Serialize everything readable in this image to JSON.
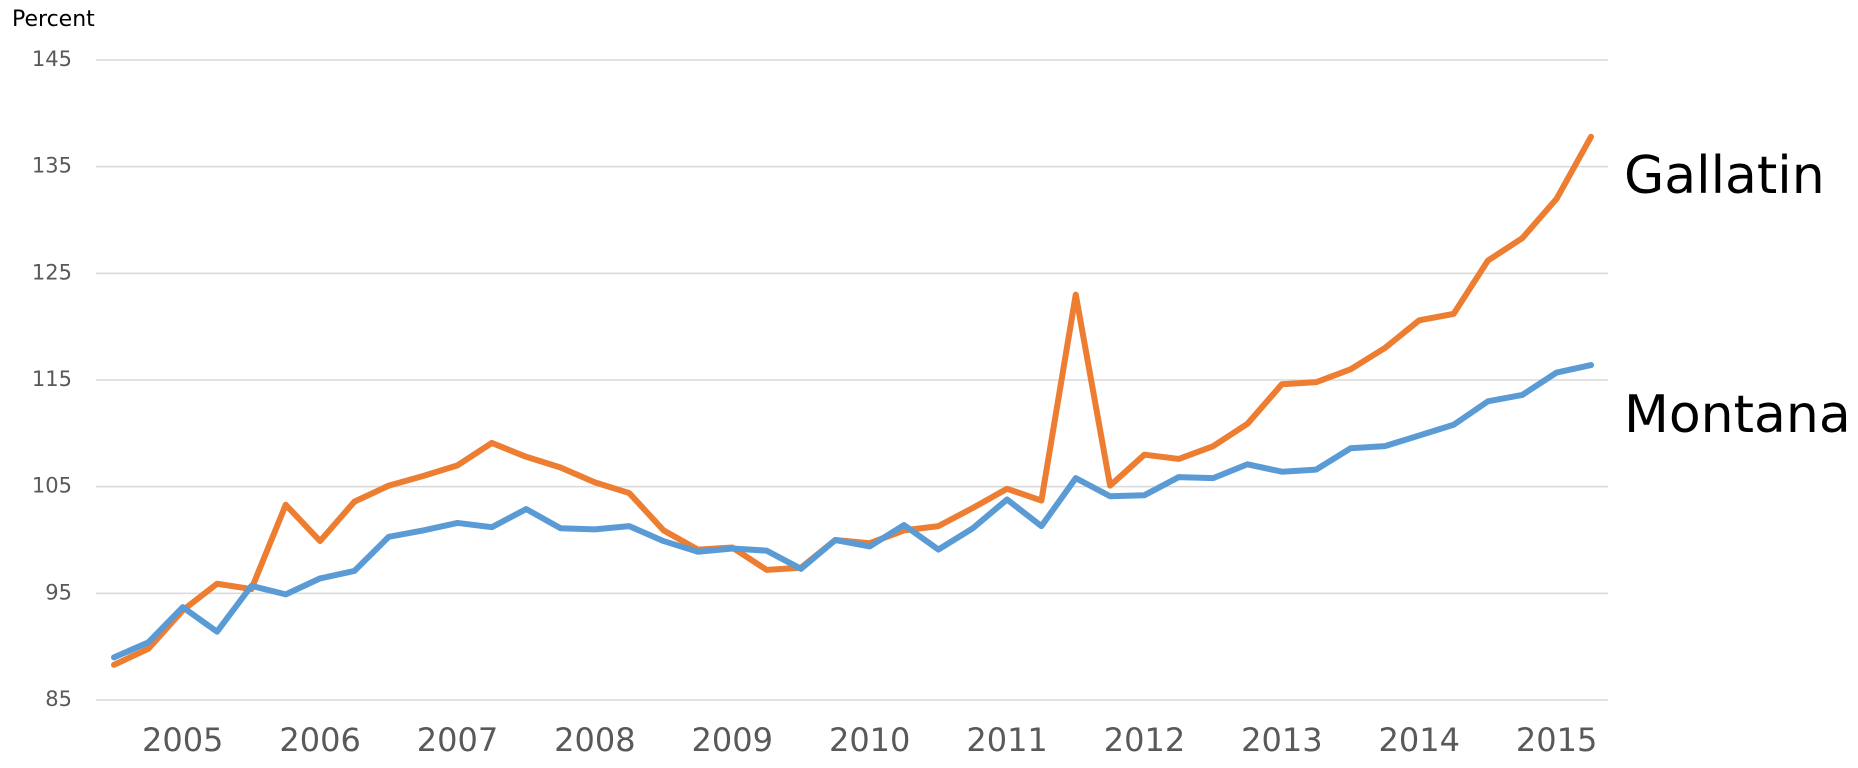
{
  "chart_data": {
    "type": "line",
    "y_label": "Percent",
    "categories": [
      null,
      null,
      "2005",
      null,
      null,
      null,
      "2006",
      null,
      null,
      null,
      "2007",
      null,
      null,
      null,
      "2008",
      null,
      null,
      null,
      "2009",
      null,
      null,
      null,
      "2010",
      null,
      null,
      null,
      "2011",
      null,
      null,
      null,
      "2012",
      null,
      null,
      null,
      "2013",
      null,
      null,
      null,
      "2014",
      null,
      null,
      null,
      "2015",
      null
    ],
    "series": [
      {
        "name": "Gallatin",
        "color": "#ed7d31",
        "values": [
          88.3,
          89.8,
          93.4,
          95.9,
          95.4,
          103.3,
          99.9,
          103.6,
          105.1,
          106.0,
          107.0,
          109.1,
          107.8,
          106.8,
          105.4,
          104.4,
          100.9,
          99.1,
          99.3,
          97.2,
          97.4,
          100.0,
          99.7,
          100.9,
          101.3,
          103.0,
          104.8,
          103.7,
          123.0,
          105.1,
          108.0,
          107.6,
          108.8,
          110.9,
          114.6,
          114.8,
          116.0,
          118.0,
          120.6,
          121.2,
          126.2,
          128.3,
          132.0,
          137.8
        ]
      },
      {
        "name": "Montana",
        "color": "#5b9bd5",
        "values": [
          89.0,
          90.4,
          93.7,
          91.4,
          95.7,
          94.9,
          96.4,
          97.1,
          100.3,
          100.9,
          101.6,
          101.2,
          102.9,
          101.1,
          101.0,
          101.3,
          99.9,
          98.9,
          99.2,
          99.0,
          97.3,
          100.0,
          99.4,
          101.4,
          99.1,
          101.1,
          103.8,
          101.3,
          105.8,
          104.1,
          104.2,
          105.9,
          105.8,
          107.1,
          106.4,
          106.6,
          108.6,
          108.8,
          109.8,
          110.8,
          113.0,
          113.6,
          115.7,
          116.4
        ]
      }
    ],
    "ylim": [
      85,
      145
    ],
    "yticks": [
      85,
      95,
      105,
      115,
      125,
      135,
      145
    ],
    "grid": true
  }
}
